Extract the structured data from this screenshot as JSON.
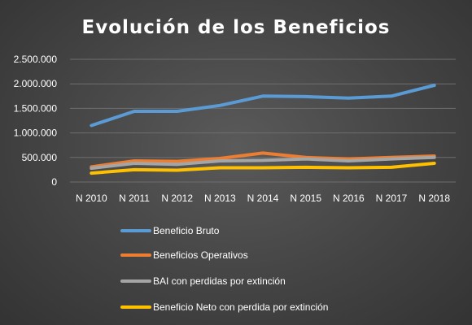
{
  "chart_data": {
    "type": "line",
    "title": "Evolución de los Beneficios",
    "categories": [
      "N 2010",
      "N 2011",
      "N 2012",
      "N 2013",
      "N 2014",
      "N 2015",
      "N 2016",
      "N 2017",
      "N 2018"
    ],
    "y_ticks": [
      "0",
      "500.000",
      "1.000.000",
      "1.500.000",
      "2.000.000",
      "2.500.000"
    ],
    "ylim": [
      0,
      2500000
    ],
    "grid": true,
    "legend_position": "bottom",
    "series": [
      {
        "name": "Beneficio Bruto",
        "color": "#5b9bd5",
        "values": [
          1150000,
          1440000,
          1440000,
          1560000,
          1750000,
          1740000,
          1710000,
          1750000,
          1970000
        ]
      },
      {
        "name": "Beneficios Operativos",
        "color": "#ed7d31",
        "values": [
          310000,
          430000,
          420000,
          480000,
          590000,
          500000,
          470000,
          500000,
          530000
        ]
      },
      {
        "name": "BAI con perdidas por extinción",
        "color": "#a5a5a5",
        "values": [
          280000,
          380000,
          360000,
          430000,
          440000,
          470000,
          430000,
          470000,
          500000
        ]
      },
      {
        "name": "Beneficio Neto con perdida por extinción",
        "color": "#ffc000",
        "values": [
          180000,
          250000,
          240000,
          290000,
          290000,
          300000,
          290000,
          300000,
          380000
        ]
      }
    ]
  }
}
